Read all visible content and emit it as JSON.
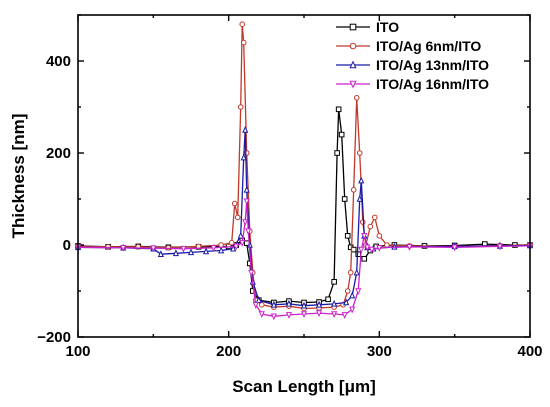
{
  "chart_data": {
    "type": "line",
    "xlabel": "Scan Length [μm]",
    "ylabel": "Thickness [nm]",
    "xlim": [
      100,
      400
    ],
    "ylim": [
      -200,
      500
    ],
    "xticks": [
      100,
      200,
      300,
      400
    ],
    "yticks": [
      -200,
      0,
      200,
      400
    ],
    "xtick_labels": [
      "100",
      "200",
      "300",
      "400"
    ],
    "ytick_labels": [
      "−200",
      "0",
      "200",
      "400"
    ],
    "grid": false,
    "legend_position": "top-right",
    "series": [
      {
        "name": "ITO",
        "color": "#000000",
        "marker": "square",
        "points": [
          [
            100,
            -2
          ],
          [
            120,
            -4
          ],
          [
            140,
            -3
          ],
          [
            160,
            -5
          ],
          [
            180,
            -4
          ],
          [
            200,
            -3
          ],
          [
            205,
            0
          ],
          [
            209,
            10
          ],
          [
            212,
            4
          ],
          [
            214,
            -40
          ],
          [
            216,
            -100
          ],
          [
            220,
            -120
          ],
          [
            230,
            -125
          ],
          [
            240,
            -122
          ],
          [
            250,
            -125
          ],
          [
            260,
            -124
          ],
          [
            266,
            -118
          ],
          [
            270,
            -80
          ],
          [
            272,
            200
          ],
          [
            273,
            295
          ],
          [
            275,
            240
          ],
          [
            277,
            100
          ],
          [
            279,
            20
          ],
          [
            281,
            -5
          ],
          [
            283,
            -10
          ],
          [
            286,
            -20
          ],
          [
            290,
            -30
          ],
          [
            294,
            -12
          ],
          [
            298,
            -3
          ],
          [
            310,
            0
          ],
          [
            330,
            -2
          ],
          [
            350,
            -1
          ],
          [
            370,
            2
          ],
          [
            390,
            0
          ],
          [
            400,
            0
          ]
        ]
      },
      {
        "name": "ITO/Ag 6nm/ITO",
        "color": "#c0392b",
        "marker": "circle",
        "points": [
          [
            100,
            -3
          ],
          [
            120,
            -4
          ],
          [
            140,
            -4
          ],
          [
            160,
            -6
          ],
          [
            180,
            -3
          ],
          [
            195,
            0
          ],
          [
            202,
            5
          ],
          [
            204,
            90
          ],
          [
            206,
            60
          ],
          [
            208,
            300
          ],
          [
            209,
            480
          ],
          [
            210,
            440
          ],
          [
            212,
            200
          ],
          [
            214,
            30
          ],
          [
            216,
            -60
          ],
          [
            218,
            -120
          ],
          [
            222,
            -130
          ],
          [
            230,
            -135
          ],
          [
            240,
            -133
          ],
          [
            250,
            -138
          ],
          [
            260,
            -137
          ],
          [
            270,
            -135
          ],
          [
            276,
            -130
          ],
          [
            279,
            -100
          ],
          [
            281,
            -60
          ],
          [
            283,
            120
          ],
          [
            285,
            320
          ],
          [
            287,
            200
          ],
          [
            289,
            50
          ],
          [
            291,
            0
          ],
          [
            294,
            40
          ],
          [
            297,
            60
          ],
          [
            300,
            20
          ],
          [
            305,
            0
          ],
          [
            320,
            -2
          ],
          [
            350,
            -3
          ],
          [
            380,
            -1
          ],
          [
            400,
            0
          ]
        ]
      },
      {
        "name": "ITO/Ag 13nm/ITO",
        "color": "#1a1aa6",
        "marker": "triangle",
        "points": [
          [
            100,
            -5
          ],
          [
            130,
            -6
          ],
          [
            150,
            -8
          ],
          [
            155,
            -20
          ],
          [
            165,
            -18
          ],
          [
            175,
            -16
          ],
          [
            185,
            -14
          ],
          [
            195,
            -12
          ],
          [
            203,
            -8
          ],
          [
            208,
            20
          ],
          [
            210,
            190
          ],
          [
            211,
            250
          ],
          [
            212,
            120
          ],
          [
            214,
            0
          ],
          [
            216,
            -80
          ],
          [
            220,
            -120
          ],
          [
            230,
            -130
          ],
          [
            240,
            -128
          ],
          [
            250,
            -132
          ],
          [
            260,
            -130
          ],
          [
            270,
            -128
          ],
          [
            278,
            -125
          ],
          [
            282,
            -110
          ],
          [
            285,
            -60
          ],
          [
            287,
            100
          ],
          [
            288,
            140
          ],
          [
            290,
            20
          ],
          [
            292,
            -5
          ],
          [
            296,
            -8
          ],
          [
            310,
            -4
          ],
          [
            350,
            -3
          ],
          [
            380,
            -2
          ],
          [
            400,
            -1
          ]
        ]
      },
      {
        "name": "ITO/Ag 16nm/ITO",
        "color": "#cc22cc",
        "marker": "inverted-triangle",
        "points": [
          [
            100,
            -5
          ],
          [
            130,
            -6
          ],
          [
            150,
            -7
          ],
          [
            170,
            -8
          ],
          [
            190,
            -6
          ],
          [
            205,
            -3
          ],
          [
            209,
            5
          ],
          [
            211,
            50
          ],
          [
            212,
            95
          ],
          [
            213,
            30
          ],
          [
            215,
            -60
          ],
          [
            218,
            -130
          ],
          [
            222,
            -150
          ],
          [
            230,
            -155
          ],
          [
            240,
            -152
          ],
          [
            250,
            -150
          ],
          [
            260,
            -148
          ],
          [
            270,
            -150
          ],
          [
            277,
            -152
          ],
          [
            282,
            -140
          ],
          [
            286,
            -100
          ],
          [
            288,
            -10
          ],
          [
            290,
            20
          ],
          [
            292,
            -5
          ],
          [
            295,
            -10
          ],
          [
            300,
            -6
          ],
          [
            320,
            -4
          ],
          [
            350,
            -5
          ],
          [
            380,
            -3
          ],
          [
            400,
            -2
          ]
        ]
      }
    ]
  }
}
